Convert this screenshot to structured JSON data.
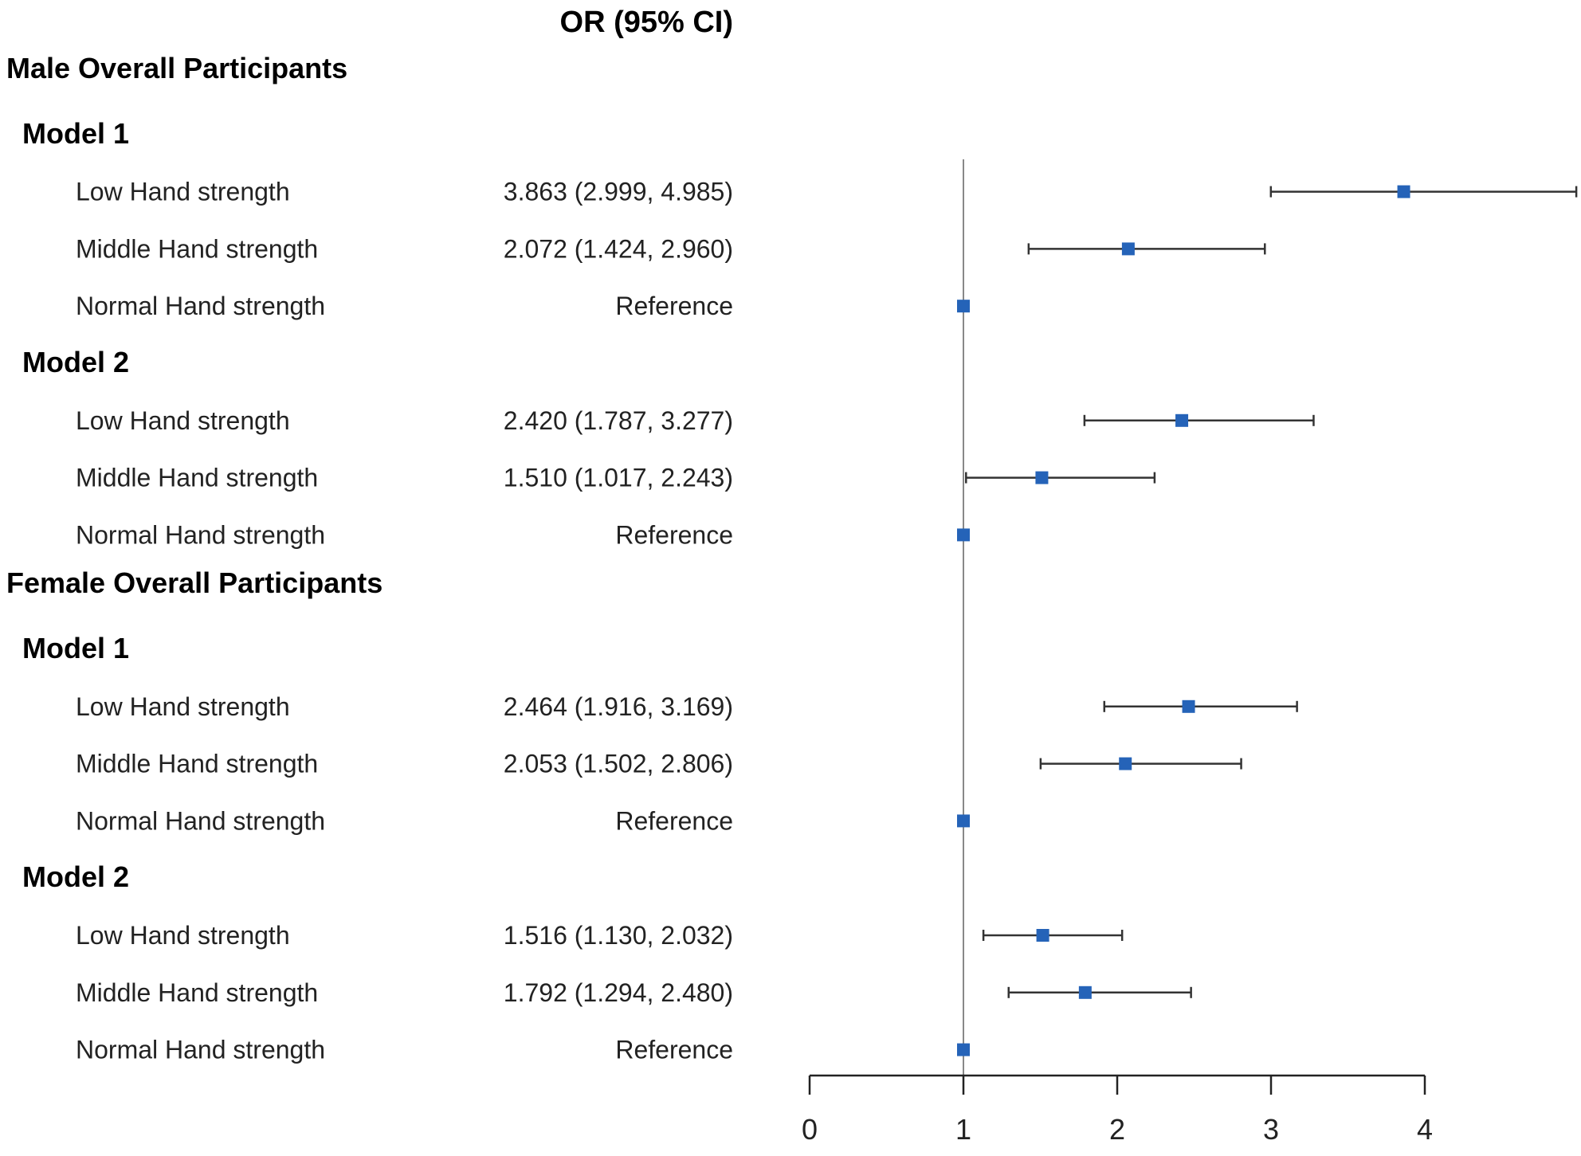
{
  "chart_data": {
    "type": "forest",
    "header": "OR (95% CI)",
    "reference_line": 1,
    "xlim": [
      0,
      4
    ],
    "ticks": [
      "0",
      "1",
      "2",
      "3",
      "4"
    ],
    "rows": [
      {
        "kind": "group",
        "label": "Male Overall Participants"
      },
      {
        "kind": "model",
        "label": "Model 1"
      },
      {
        "kind": "data",
        "label": "Low Hand strength",
        "estimate_text": "3.863 (2.999, 4.985)",
        "or": 3.863,
        "lo": 2.999,
        "hi": 4.985
      },
      {
        "kind": "data",
        "label": "Middle Hand strength",
        "estimate_text": "2.072 (1.424, 2.960)",
        "or": 2.072,
        "lo": 1.424,
        "hi": 2.96
      },
      {
        "kind": "data",
        "label": "Normal Hand strength",
        "estimate_text": "Reference",
        "or": 1
      },
      {
        "kind": "model",
        "label": "Model 2"
      },
      {
        "kind": "data",
        "label": "Low Hand strength",
        "estimate_text": "2.420 (1.787, 3.277)",
        "or": 2.42,
        "lo": 1.787,
        "hi": 3.277
      },
      {
        "kind": "data",
        "label": "Middle Hand strength",
        "estimate_text": "1.510 (1.017, 2.243)",
        "or": 1.51,
        "lo": 1.017,
        "hi": 2.243
      },
      {
        "kind": "data",
        "label": "Normal Hand strength",
        "estimate_text": "Reference",
        "or": 1
      },
      {
        "kind": "group",
        "label": "Female Overall Participants"
      },
      {
        "kind": "model",
        "label": "Model 1"
      },
      {
        "kind": "data",
        "label": "Low Hand strength",
        "estimate_text": "2.464 (1.916, 3.169)",
        "or": 2.464,
        "lo": 1.916,
        "hi": 3.169
      },
      {
        "kind": "data",
        "label": "Middle Hand strength",
        "estimate_text": "2.053 (1.502, 2.806)",
        "or": 2.053,
        "lo": 1.502,
        "hi": 2.806
      },
      {
        "kind": "data",
        "label": "Normal Hand strength",
        "estimate_text": "Reference",
        "or": 1
      },
      {
        "kind": "model",
        "label": "Model 2"
      },
      {
        "kind": "data",
        "label": "Low Hand strength",
        "estimate_text": "1.516 (1.130, 2.032)",
        "or": 1.516,
        "lo": 1.13,
        "hi": 2.032
      },
      {
        "kind": "data",
        "label": "Middle Hand strength",
        "estimate_text": "1.792 (1.294, 2.480)",
        "or": 1.792,
        "lo": 1.294,
        "hi": 2.48
      },
      {
        "kind": "data",
        "label": "Normal Hand strength",
        "estimate_text": "Reference",
        "or": 1
      }
    ],
    "colors": {
      "marker": "#2563b8",
      "line": "#333333",
      "reference": "#888888"
    }
  }
}
